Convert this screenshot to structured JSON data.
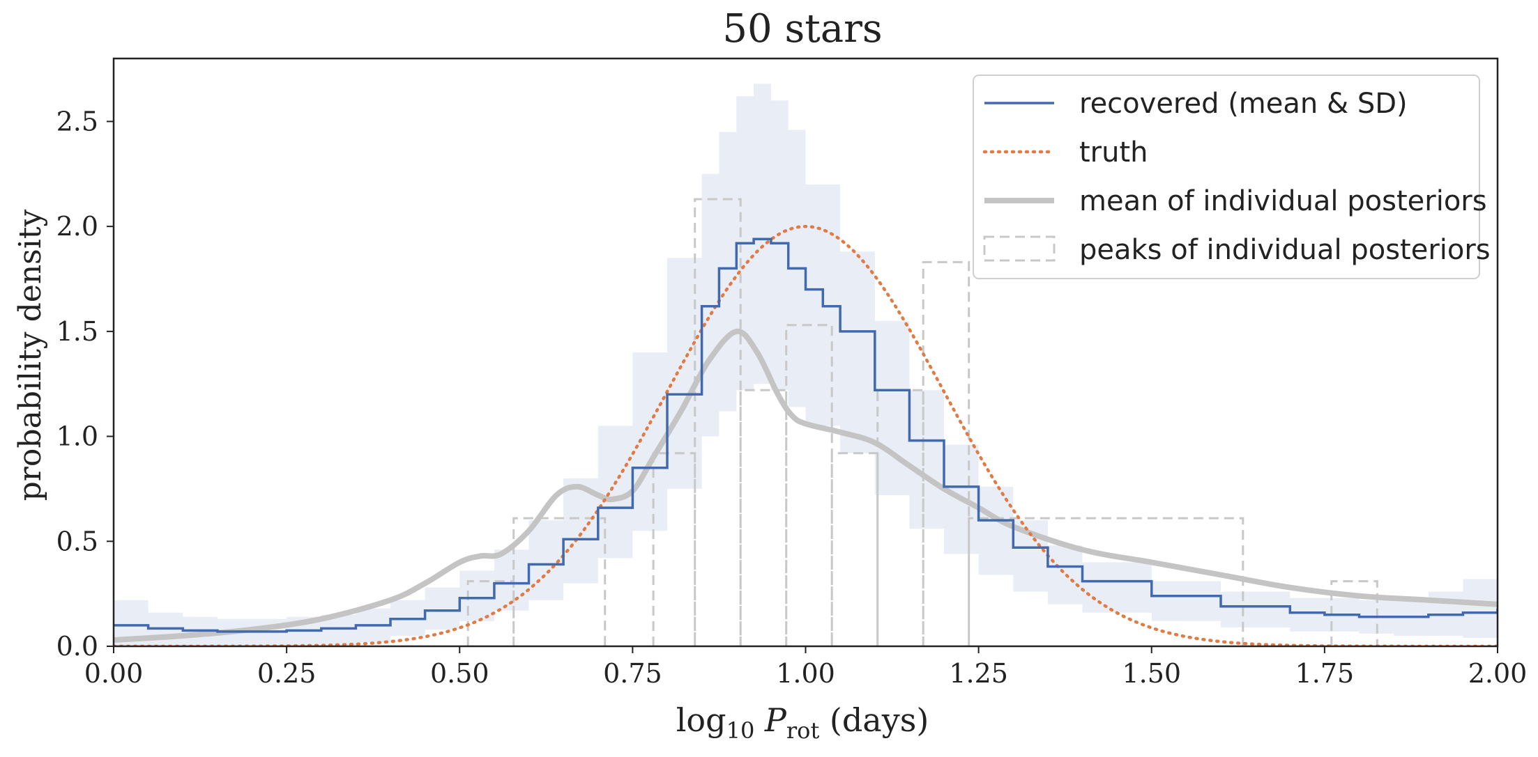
{
  "chart_data": {
    "type": "line",
    "title": "50 stars",
    "xlabel": "log10 Prot (days)",
    "ylabel": "probability density",
    "xlim": [
      0.0,
      2.0
    ],
    "ylim": [
      0.0,
      2.8
    ],
    "x_ticks": [
      "0.00",
      "0.25",
      "0.50",
      "0.75",
      "1.00",
      "1.25",
      "1.50",
      "1.75",
      "2.00"
    ],
    "y_ticks": [
      "0.0",
      "0.5",
      "1.0",
      "1.5",
      "2.0",
      "2.5"
    ],
    "legend_position": "top-right",
    "grid": false,
    "colors": {
      "recovered": "#4169b0",
      "band": "#e9edf5",
      "truth": "#e07b45",
      "mean_posteriors": "#c4c4c4",
      "peaks": "#c8c8c8",
      "axes": "#222222"
    },
    "legend": [
      {
        "key": "recovered",
        "label": "recovered (mean & SD)",
        "style": "solid-blue"
      },
      {
        "key": "truth",
        "label": "truth",
        "style": "dotted-orange"
      },
      {
        "key": "mean_posteriors",
        "label": "mean of individual posteriors",
        "style": "thick-gray"
      },
      {
        "key": "peaks",
        "label": "peaks of individual posteriors",
        "style": "dashed-gray"
      }
    ],
    "series": [
      {
        "name": "recovered (mean & SD)",
        "x": [
          0.0,
          0.05,
          0.1,
          0.15,
          0.2,
          0.25,
          0.3,
          0.35,
          0.4,
          0.45,
          0.5,
          0.55,
          0.6,
          0.65,
          0.7,
          0.75,
          0.8,
          0.85,
          0.875,
          0.9,
          0.925,
          0.95,
          0.975,
          1.0,
          1.025,
          1.05,
          1.1,
          1.15,
          1.2,
          1.25,
          1.3,
          1.35,
          1.4,
          1.5,
          1.6,
          1.7,
          1.75,
          1.8,
          1.85,
          1.9,
          1.95,
          2.0
        ],
        "y": [
          0.1,
          0.085,
          0.075,
          0.07,
          0.07,
          0.075,
          0.085,
          0.1,
          0.13,
          0.17,
          0.23,
          0.3,
          0.39,
          0.51,
          0.66,
          0.85,
          1.2,
          1.62,
          1.8,
          1.92,
          1.94,
          1.92,
          1.8,
          1.7,
          1.62,
          1.5,
          1.22,
          0.98,
          0.76,
          0.6,
          0.47,
          0.38,
          0.31,
          0.24,
          0.19,
          0.16,
          0.15,
          0.14,
          0.14,
          0.15,
          0.16,
          0.18
        ]
      },
      {
        "name": "recovered SD band upper",
        "x": [
          0.0,
          0.05,
          0.1,
          0.15,
          0.2,
          0.25,
          0.3,
          0.35,
          0.4,
          0.45,
          0.5,
          0.55,
          0.6,
          0.65,
          0.7,
          0.75,
          0.8,
          0.85,
          0.875,
          0.9,
          0.925,
          0.95,
          0.975,
          1.0,
          1.05,
          1.1,
          1.15,
          1.2,
          1.25,
          1.3,
          1.35,
          1.4,
          1.5,
          1.6,
          1.7,
          1.8,
          1.85,
          1.9,
          1.95,
          2.0
        ],
        "y": [
          0.22,
          0.16,
          0.14,
          0.13,
          0.13,
          0.14,
          0.15,
          0.18,
          0.22,
          0.28,
          0.36,
          0.46,
          0.6,
          0.8,
          1.05,
          1.4,
          1.85,
          2.25,
          2.45,
          2.62,
          2.68,
          2.6,
          2.46,
          2.2,
          1.88,
          1.55,
          1.22,
          0.96,
          0.76,
          0.6,
          0.48,
          0.4,
          0.31,
          0.26,
          0.23,
          0.22,
          0.23,
          0.26,
          0.32,
          0.42
        ]
      },
      {
        "name": "recovered SD band lower",
        "x": [
          0.0,
          0.05,
          0.1,
          0.15,
          0.2,
          0.25,
          0.3,
          0.35,
          0.4,
          0.45,
          0.5,
          0.55,
          0.6,
          0.65,
          0.7,
          0.75,
          0.8,
          0.85,
          0.875,
          0.9,
          0.925,
          0.95,
          0.975,
          1.0,
          1.05,
          1.1,
          1.15,
          1.2,
          1.25,
          1.3,
          1.35,
          1.4,
          1.5,
          1.6,
          1.7,
          1.8,
          1.85,
          1.9,
          1.95,
          2.0
        ],
        "y": [
          0.0,
          0.0,
          0.0,
          0.0,
          0.0,
          0.0,
          0.0,
          0.02,
          0.05,
          0.08,
          0.12,
          0.17,
          0.22,
          0.3,
          0.42,
          0.55,
          0.75,
          1.0,
          1.12,
          1.22,
          1.25,
          1.22,
          1.14,
          1.05,
          0.92,
          0.72,
          0.56,
          0.44,
          0.34,
          0.26,
          0.2,
          0.16,
          0.12,
          0.09,
          0.07,
          0.06,
          0.05,
          0.05,
          0.04,
          0.04
        ]
      },
      {
        "name": "truth",
        "mean": 1.0,
        "sd": 0.2,
        "x": [
          0.0,
          0.1,
          0.2,
          0.3,
          0.4,
          0.5,
          0.55,
          0.6,
          0.65,
          0.7,
          0.75,
          0.8,
          0.85,
          0.9,
          0.95,
          1.0,
          1.05,
          1.1,
          1.15,
          1.2,
          1.25,
          1.3,
          1.35,
          1.4,
          1.45,
          1.5,
          1.6,
          1.7,
          1.8,
          1.9,
          2.0
        ],
        "y": [
          0.0,
          0.0,
          0.0,
          0.01,
          0.03,
          0.09,
          0.16,
          0.27,
          0.42,
          0.65,
          0.91,
          1.21,
          1.51,
          1.76,
          1.94,
          2.0,
          1.94,
          1.76,
          1.51,
          1.21,
          0.91,
          0.65,
          0.42,
          0.27,
          0.16,
          0.09,
          0.03,
          0.01,
          0.0,
          0.0,
          0.0
        ]
      },
      {
        "name": "mean of individual posteriors",
        "x": [
          0.0,
          0.1,
          0.2,
          0.3,
          0.4,
          0.45,
          0.5,
          0.53,
          0.56,
          0.6,
          0.64,
          0.67,
          0.7,
          0.72,
          0.75,
          0.78,
          0.82,
          0.86,
          0.9,
          0.93,
          0.96,
          0.98,
          1.0,
          1.05,
          1.1,
          1.15,
          1.2,
          1.25,
          1.3,
          1.4,
          1.5,
          1.6,
          1.7,
          1.8,
          1.9,
          2.0
        ],
        "y": [
          0.03,
          0.05,
          0.08,
          0.13,
          0.22,
          0.3,
          0.4,
          0.43,
          0.44,
          0.55,
          0.72,
          0.76,
          0.72,
          0.7,
          0.74,
          0.9,
          1.12,
          1.36,
          1.5,
          1.4,
          1.2,
          1.1,
          1.06,
          1.02,
          0.97,
          0.86,
          0.75,
          0.66,
          0.57,
          0.46,
          0.4,
          0.34,
          0.28,
          0.24,
          0.22,
          0.2
        ]
      },
      {
        "name": "peaks of individual posteriors",
        "bin_edges": [
          0.512,
          0.578,
          0.71,
          0.78,
          0.84,
          0.906,
          0.972,
          1.038,
          1.104,
          1.17,
          1.236,
          1.632,
          1.76,
          1.826
        ],
        "heights": [
          0.31,
          0.61,
          0.0,
          0.92,
          2.13,
          1.22,
          1.53,
          0.92,
          1.22,
          1.83,
          0.61,
          0.0,
          0.31
        ]
      }
    ]
  }
}
